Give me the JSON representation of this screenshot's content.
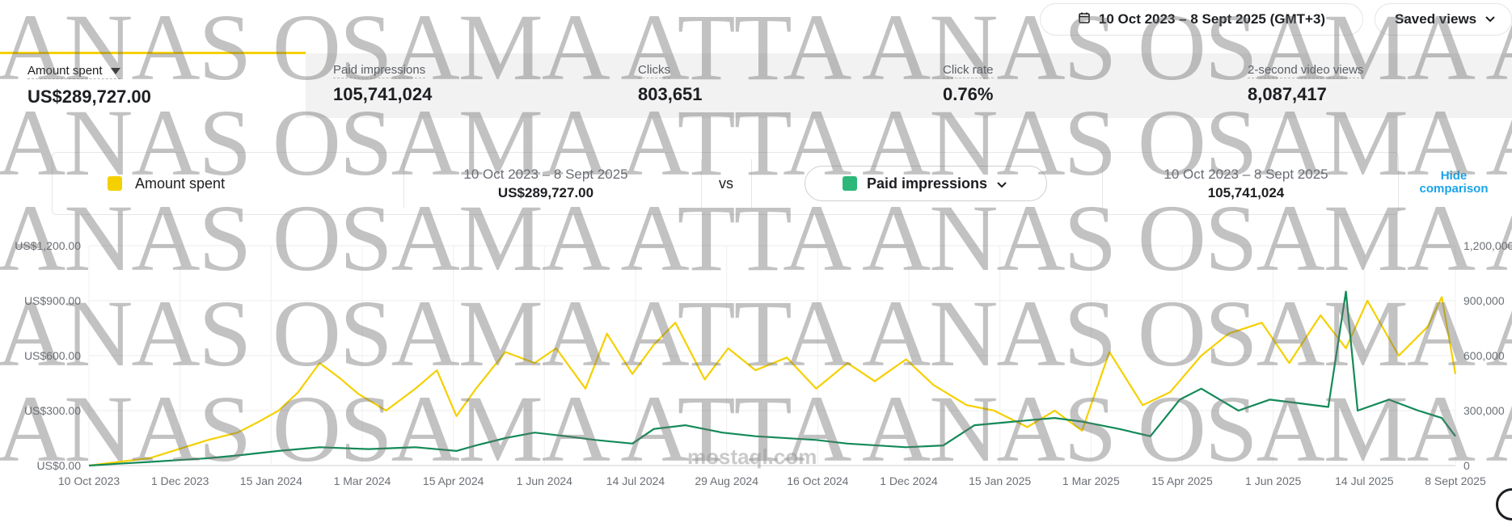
{
  "header": {
    "date_range": "10 Oct 2023 – 8 Sept 2025 (GMT+3)",
    "saved_views": "Saved views"
  },
  "metrics": [
    {
      "label": "Amount spent",
      "value": "US$289,727.00"
    },
    {
      "label": "Paid impressions",
      "value": "105,741,024"
    },
    {
      "label": "Clicks",
      "value": "803,651"
    },
    {
      "label": "Click rate",
      "value": "0.76%"
    },
    {
      "label": "2-second video views",
      "value": "8,087,417"
    }
  ],
  "comparison": {
    "primary_label": "Amount spent",
    "primary_range": "10 Oct 2023 – 8 Sept 2025",
    "primary_value": "US$289,727.00",
    "vs": "vs",
    "secondary_label": "Paid impressions",
    "secondary_range": "10 Oct 2023 – 8 Sept 2025",
    "secondary_value": "105,741,024",
    "hide_line1": "Hide",
    "hide_line2": "comparison"
  },
  "watermark": {
    "text": "ANAS OSAMA ATTA ANAS OSAMA ATTA",
    "logo_text": "mostaql.com"
  },
  "colors": {
    "amount_spent": "#f5d000",
    "paid_impressions": "#138a58",
    "link": "#1aa3e8"
  },
  "chart_data": {
    "type": "line",
    "x_tick_labels": [
      "10 Oct 2023",
      "1 Dec 2023",
      "15 Jan 2024",
      "1 Mar 2024",
      "15 Apr 2024",
      "1 Jun 2024",
      "14 Jul 2024",
      "29 Aug 2024",
      "16 Oct 2024",
      "1 Dec 2024",
      "15 Jan 2025",
      "1 Mar 2025",
      "15 Apr 2025",
      "1 Jun 2025",
      "14 Jul 2025",
      "8 Sept 2025"
    ],
    "x_range": [
      "2023-10-10",
      "2025-09-08"
    ],
    "y_left_ticks": [
      "US$0.00",
      "US$300.00",
      "US$600.00",
      "US$900.00",
      "US$1,200.00"
    ],
    "y_right_ticks": [
      "0",
      "300,000",
      "600,000",
      "900,000",
      "1,200,000"
    ],
    "ylim_left": [
      0,
      1200
    ],
    "ylim_right": [
      0,
      1200000
    ],
    "grid": true,
    "series": [
      {
        "name": "Amount spent",
        "axis": "left",
        "color": "#f5d000",
        "points": [
          [
            "2023-10-10",
            0
          ],
          [
            "2023-10-25",
            20
          ],
          [
            "2023-11-10",
            40
          ],
          [
            "2023-11-25",
            90
          ],
          [
            "2023-12-10",
            140
          ],
          [
            "2023-12-25",
            180
          ],
          [
            "2024-01-05",
            240
          ],
          [
            "2024-01-15",
            300
          ],
          [
            "2024-01-25",
            400
          ],
          [
            "2024-02-05",
            560
          ],
          [
            "2024-02-15",
            480
          ],
          [
            "2024-02-25",
            390
          ],
          [
            "2024-03-10",
            300
          ],
          [
            "2024-03-25",
            420
          ],
          [
            "2024-04-05",
            520
          ],
          [
            "2024-04-15",
            270
          ],
          [
            "2024-04-25",
            420
          ],
          [
            "2024-05-10",
            620
          ],
          [
            "2024-05-25",
            560
          ],
          [
            "2024-06-05",
            640
          ],
          [
            "2024-06-20",
            420
          ],
          [
            "2024-07-01",
            720
          ],
          [
            "2024-07-14",
            500
          ],
          [
            "2024-07-25",
            660
          ],
          [
            "2024-08-05",
            780
          ],
          [
            "2024-08-20",
            470
          ],
          [
            "2024-09-01",
            640
          ],
          [
            "2024-09-15",
            520
          ],
          [
            "2024-10-01",
            590
          ],
          [
            "2024-10-16",
            420
          ],
          [
            "2024-11-01",
            560
          ],
          [
            "2024-11-15",
            460
          ],
          [
            "2024-12-01",
            580
          ],
          [
            "2024-12-15",
            440
          ],
          [
            "2025-01-01",
            330
          ],
          [
            "2025-01-15",
            300
          ],
          [
            "2025-02-01",
            210
          ],
          [
            "2025-02-15",
            300
          ],
          [
            "2025-03-01",
            190
          ],
          [
            "2025-03-15",
            620
          ],
          [
            "2025-04-01",
            330
          ],
          [
            "2025-04-15",
            400
          ],
          [
            "2025-05-01",
            600
          ],
          [
            "2025-05-15",
            720
          ],
          [
            "2025-06-01",
            780
          ],
          [
            "2025-06-15",
            560
          ],
          [
            "2025-07-01",
            820
          ],
          [
            "2025-07-14",
            640
          ],
          [
            "2025-07-25",
            900
          ],
          [
            "2025-08-10",
            600
          ],
          [
            "2025-08-25",
            760
          ],
          [
            "2025-09-01",
            920
          ],
          [
            "2025-09-08",
            500
          ]
        ]
      },
      {
        "name": "Paid impressions",
        "axis": "right",
        "color": "#138a58",
        "points": [
          [
            "2023-10-10",
            0
          ],
          [
            "2023-10-25",
            10000
          ],
          [
            "2023-11-10",
            20000
          ],
          [
            "2023-11-25",
            30000
          ],
          [
            "2023-12-10",
            40000
          ],
          [
            "2023-12-25",
            55000
          ],
          [
            "2024-01-15",
            80000
          ],
          [
            "2024-02-05",
            100000
          ],
          [
            "2024-03-01",
            90000
          ],
          [
            "2024-03-25",
            100000
          ],
          [
            "2024-04-15",
            80000
          ],
          [
            "2024-04-25",
            110000
          ],
          [
            "2024-05-10",
            150000
          ],
          [
            "2024-05-25",
            180000
          ],
          [
            "2024-06-10",
            160000
          ],
          [
            "2024-06-25",
            140000
          ],
          [
            "2024-07-14",
            120000
          ],
          [
            "2024-07-25",
            200000
          ],
          [
            "2024-08-10",
            220000
          ],
          [
            "2024-08-29",
            180000
          ],
          [
            "2024-09-15",
            160000
          ],
          [
            "2024-10-16",
            140000
          ],
          [
            "2024-11-01",
            120000
          ],
          [
            "2024-12-01",
            100000
          ],
          [
            "2024-12-20",
            110000
          ],
          [
            "2025-01-05",
            220000
          ],
          [
            "2025-01-25",
            240000
          ],
          [
            "2025-02-15",
            260000
          ],
          [
            "2025-03-01",
            240000
          ],
          [
            "2025-03-20",
            200000
          ],
          [
            "2025-04-05",
            160000
          ],
          [
            "2025-04-20",
            360000
          ],
          [
            "2025-05-01",
            420000
          ],
          [
            "2025-05-20",
            300000
          ],
          [
            "2025-06-05",
            360000
          ],
          [
            "2025-06-20",
            340000
          ],
          [
            "2025-07-05",
            320000
          ],
          [
            "2025-07-14",
            950000
          ],
          [
            "2025-07-20",
            300000
          ],
          [
            "2025-08-05",
            360000
          ],
          [
            "2025-08-20",
            300000
          ],
          [
            "2025-09-01",
            260000
          ],
          [
            "2025-09-08",
            160000
          ]
        ]
      }
    ]
  }
}
